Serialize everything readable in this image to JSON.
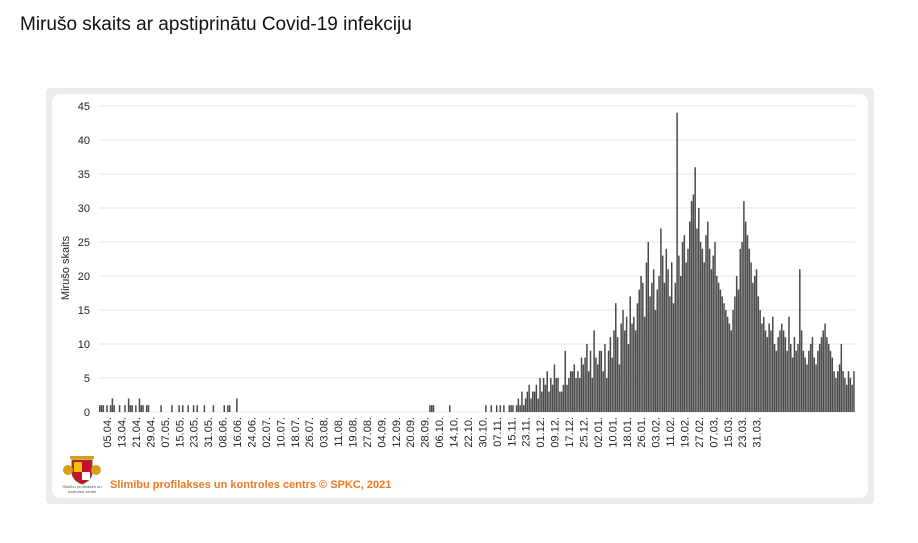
{
  "title": "Mirušo skaits ar apstiprinātu Covid-19 infekciju",
  "source_text": "Slimību profilakses un kontroles centrs © SPKC, 2021",
  "logo_text": "Slimību profilakses un kontroles centrs",
  "colors": {
    "bar": "#4a4a4a",
    "bar_stroke": "#ffffff",
    "grid": "#e6e6e6",
    "source": "#f07a20"
  },
  "chart_data": {
    "type": "bar",
    "ylabel": "Mirušo skaits",
    "xlabel": "",
    "ylim": [
      0,
      45
    ],
    "yticks": [
      0,
      5,
      10,
      15,
      20,
      25,
      30,
      35,
      40,
      45
    ],
    "grid": true,
    "legend": "none",
    "x_start": "2020-04-01",
    "x_end": "2021-03-31",
    "xtick_labels": [
      "05.04.",
      "13.04.",
      "21.04.",
      "29.04.",
      "07.05.",
      "15.05.",
      "23.05.",
      "31.05.",
      "08.06.",
      "16.06.",
      "24.06.",
      "02.07.",
      "10.07.",
      "18.07.",
      "26.07.",
      "03.08.",
      "11.08.",
      "19.08.",
      "27.08.",
      "04.09.",
      "12.09.",
      "20.09.",
      "28.09.",
      "06.10.",
      "14.10.",
      "22.10.",
      "30.10.",
      "07.11.",
      "15.11.",
      "23.11.",
      "01.12.",
      "09.12.",
      "17.12.",
      "25.12.",
      "02.01.",
      "10.01.",
      "18.01.",
      "26.01.",
      "03.02.",
      "11.02.",
      "19.02.",
      "27.02.",
      "07.03.",
      "15.03.",
      "23.03.",
      "31.03."
    ],
    "values": [
      1,
      1,
      1,
      0,
      1,
      0,
      1,
      2,
      1,
      0,
      0,
      1,
      0,
      0,
      1,
      0,
      2,
      1,
      1,
      0,
      1,
      0,
      2,
      1,
      1,
      0,
      1,
      1,
      0,
      0,
      0,
      0,
      0,
      0,
      1,
      0,
      0,
      0,
      0,
      0,
      1,
      0,
      0,
      0,
      1,
      0,
      1,
      0,
      0,
      1,
      0,
      0,
      1,
      0,
      1,
      0,
      0,
      0,
      1,
      0,
      0,
      0,
      0,
      1,
      0,
      0,
      0,
      0,
      0,
      1,
      0,
      1,
      1,
      0,
      0,
      0,
      2,
      0,
      0,
      0,
      0,
      0,
      0,
      0,
      0,
      0,
      0,
      0,
      0,
      0,
      0,
      0,
      0,
      0,
      0,
      0,
      0,
      0,
      0,
      0,
      0,
      0,
      0,
      0,
      0,
      0,
      0,
      0,
      0,
      0,
      0,
      0,
      0,
      0,
      0,
      0,
      0,
      0,
      0,
      0,
      0,
      0,
      0,
      0,
      0,
      0,
      0,
      0,
      0,
      0,
      0,
      0,
      0,
      0,
      0,
      0,
      0,
      0,
      0,
      0,
      0,
      0,
      0,
      0,
      0,
      0,
      0,
      0,
      0,
      0,
      0,
      0,
      0,
      0,
      0,
      0,
      0,
      0,
      0,
      0,
      0,
      0,
      0,
      0,
      0,
      0,
      0,
      0,
      0,
      0,
      0,
      0,
      0,
      0,
      0,
      0,
      0,
      0,
      0,
      0,
      0,
      0,
      0,
      1,
      1,
      1,
      0,
      0,
      0,
      0,
      0,
      0,
      0,
      0,
      1,
      0,
      0,
      0,
      0,
      0,
      0,
      0,
      0,
      0,
      0,
      0,
      0,
      0,
      0,
      0,
      0,
      0,
      0,
      0,
      1,
      0,
      0,
      1,
      0,
      0,
      1,
      0,
      1,
      0,
      1,
      0,
      0,
      1,
      1,
      1,
      0,
      1,
      2,
      1,
      3,
      1,
      2,
      3,
      4,
      2,
      3,
      3,
      4,
      2,
      5,
      3,
      5,
      4,
      6,
      3,
      5,
      4,
      7,
      5,
      5,
      3,
      3,
      4,
      9,
      4,
      5,
      6,
      6,
      7,
      5,
      6,
      5,
      8,
      7,
      8,
      10,
      6,
      9,
      5,
      12,
      8,
      7,
      9,
      9,
      6,
      10,
      5,
      9,
      11,
      8,
      12,
      16,
      11,
      7,
      13,
      15,
      12,
      14,
      10,
      17,
      13,
      14,
      12,
      16,
      18,
      20,
      19,
      14,
      22,
      25,
      17,
      19,
      21,
      15,
      18,
      20,
      27,
      23,
      19,
      24,
      21,
      17,
      22,
      16,
      19,
      44,
      23,
      20,
      25,
      26,
      22,
      24,
      28,
      31,
      32,
      36,
      27,
      30,
      25,
      24,
      22,
      26,
      28,
      24,
      21,
      23,
      25,
      20,
      19,
      18,
      17,
      16,
      15,
      14,
      13,
      12,
      15,
      17,
      20,
      18,
      24,
      25,
      31,
      28,
      26,
      24,
      22,
      19,
      20,
      21,
      17,
      15,
      13,
      14,
      12,
      11,
      13,
      12,
      14,
      10,
      9,
      11,
      12,
      13,
      12,
      11,
      9,
      14,
      10,
      8,
      11,
      9,
      10,
      21,
      12,
      9,
      8,
      7,
      9,
      10,
      11,
      8,
      7,
      9,
      10,
      11,
      12,
      13,
      11,
      10,
      9,
      8,
      6,
      5,
      6,
      7,
      10,
      6,
      5,
      4,
      6,
      5,
      4,
      6
    ]
  }
}
